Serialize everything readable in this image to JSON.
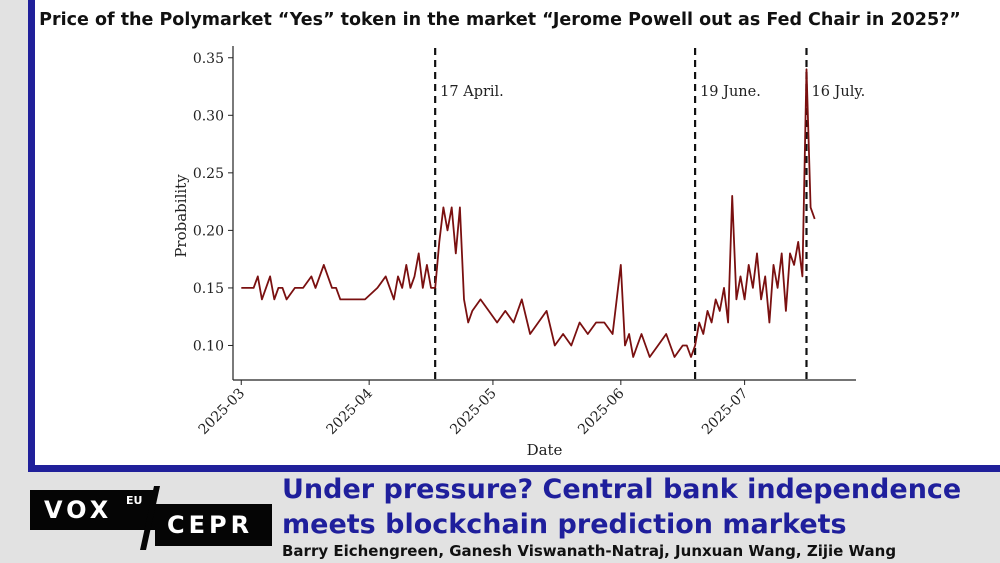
{
  "chart_data": {
    "type": "line",
    "title": "Price of the Polymarket “Yes” token in the market “Jerome Powell out as Fed Chair in 2025?”",
    "xlabel": "Date",
    "ylabel": "Probability",
    "x_ticks": [
      "2025-03",
      "2025-04",
      "2025-05",
      "2025-06",
      "2025-07"
    ],
    "y_ticks": [
      "0.10",
      "0.15",
      "0.20",
      "0.25",
      "0.30",
      "0.35"
    ],
    "xlim": [
      "2025-02-27",
      "2025-07-28"
    ],
    "ylim": [
      0.07,
      0.355
    ],
    "grid": false,
    "legend": "none",
    "line_color": "#7a1010",
    "annotations": [
      {
        "date": "2025-04-17",
        "label": "17 April."
      },
      {
        "date": "2025-06-19",
        "label": "19 June."
      },
      {
        "date": "2025-07-16",
        "label": "16 July."
      }
    ],
    "series": [
      {
        "x": [
          "2025-03-01",
          "2025-03-04",
          "2025-03-05",
          "2025-03-06",
          "2025-03-07",
          "2025-03-08",
          "2025-03-09",
          "2025-03-10",
          "2025-03-11",
          "2025-03-12",
          "2025-03-14",
          "2025-03-16",
          "2025-03-18",
          "2025-03-19",
          "2025-03-21",
          "2025-03-23",
          "2025-03-24",
          "2025-03-25",
          "2025-03-26",
          "2025-03-28",
          "2025-03-31",
          "2025-04-03",
          "2025-04-05",
          "2025-04-06",
          "2025-04-07",
          "2025-04-08",
          "2025-04-09",
          "2025-04-10",
          "2025-04-11",
          "2025-04-12",
          "2025-04-13",
          "2025-04-14",
          "2025-04-15",
          "2025-04-16",
          "2025-04-17",
          "2025-04-18",
          "2025-04-19",
          "2025-04-20",
          "2025-04-21",
          "2025-04-22",
          "2025-04-23",
          "2025-04-24",
          "2025-04-25",
          "2025-04-26",
          "2025-04-28",
          "2025-04-30",
          "2025-05-02",
          "2025-05-04",
          "2025-05-06",
          "2025-05-08",
          "2025-05-10",
          "2025-05-12",
          "2025-05-14",
          "2025-05-16",
          "2025-05-18",
          "2025-05-20",
          "2025-05-22",
          "2025-05-24",
          "2025-05-26",
          "2025-05-28",
          "2025-05-30",
          "2025-06-01",
          "2025-06-02",
          "2025-06-03",
          "2025-06-04",
          "2025-06-05",
          "2025-06-06",
          "2025-06-08",
          "2025-06-10",
          "2025-06-12",
          "2025-06-14",
          "2025-06-16",
          "2025-06-17",
          "2025-06-18",
          "2025-06-19",
          "2025-06-20",
          "2025-06-21",
          "2025-06-22",
          "2025-06-23",
          "2025-06-24",
          "2025-06-25",
          "2025-06-26",
          "2025-06-27",
          "2025-06-28",
          "2025-06-29",
          "2025-06-30",
          "2025-07-01",
          "2025-07-02",
          "2025-07-03",
          "2025-07-04",
          "2025-07-05",
          "2025-07-06",
          "2025-07-07",
          "2025-07-08",
          "2025-07-09",
          "2025-07-10",
          "2025-07-11",
          "2025-07-12",
          "2025-07-13",
          "2025-07-14",
          "2025-07-15",
          "2025-07-16",
          "2025-07-17",
          "2025-07-18"
        ],
        "y": [
          0.15,
          0.15,
          0.16,
          0.14,
          0.15,
          0.16,
          0.14,
          0.15,
          0.15,
          0.14,
          0.15,
          0.15,
          0.16,
          0.15,
          0.17,
          0.15,
          0.15,
          0.14,
          0.14,
          0.14,
          0.14,
          0.15,
          0.16,
          0.15,
          0.14,
          0.16,
          0.15,
          0.17,
          0.15,
          0.16,
          0.18,
          0.15,
          0.17,
          0.15,
          0.15,
          0.19,
          0.22,
          0.2,
          0.22,
          0.18,
          0.22,
          0.14,
          0.12,
          0.13,
          0.14,
          0.13,
          0.12,
          0.13,
          0.12,
          0.14,
          0.11,
          0.12,
          0.13,
          0.1,
          0.11,
          0.1,
          0.12,
          0.11,
          0.12,
          0.12,
          0.11,
          0.17,
          0.1,
          0.11,
          0.09,
          0.1,
          0.11,
          0.09,
          0.1,
          0.11,
          0.09,
          0.1,
          0.1,
          0.09,
          0.1,
          0.12,
          0.11,
          0.13,
          0.12,
          0.14,
          0.13,
          0.15,
          0.12,
          0.23,
          0.14,
          0.16,
          0.14,
          0.17,
          0.15,
          0.18,
          0.14,
          0.16,
          0.12,
          0.17,
          0.15,
          0.18,
          0.13,
          0.18,
          0.17,
          0.19,
          0.16,
          0.34,
          0.22,
          0.21
        ]
      }
    ]
  },
  "footer": {
    "logo_vox": "VOX",
    "logo_eu": "EU",
    "logo_cepr": "CEPR",
    "headline": "Under pressure? Central bank independence meets blockchain prediction markets",
    "authors": "Barry Eichengreen, Ganesh Viswanath-Natraj, Junxuan Wang, Zijie Wang"
  }
}
